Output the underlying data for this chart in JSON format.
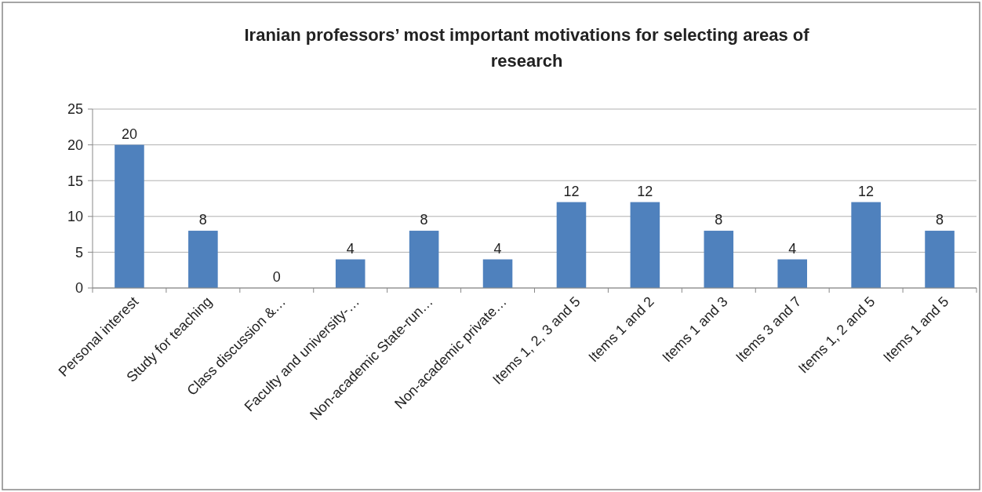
{
  "chart_data": {
    "type": "bar",
    "title": "Iranian professors’ most important motivations for selecting areas  of research",
    "categories": [
      "Personal interest",
      "Study for teaching",
      "Class discussion &…",
      "Faculty and university-…",
      "Non-academic State-run…",
      "Non-academic private…",
      "Items 1, 2, 3 and 5",
      "Items 1 and 2",
      "Items 1 and 3",
      "Items 3 and 7",
      "Items 1, 2 and 5",
      "Items 1 and 5"
    ],
    "values": [
      20,
      8,
      0,
      4,
      8,
      4,
      12,
      12,
      8,
      4,
      12,
      8
    ],
    "color": "#4f81bd",
    "ylim": [
      0,
      25
    ],
    "yticks": [
      0,
      5,
      10,
      15,
      20,
      25
    ],
    "grid": "y",
    "data_labels": true
  }
}
